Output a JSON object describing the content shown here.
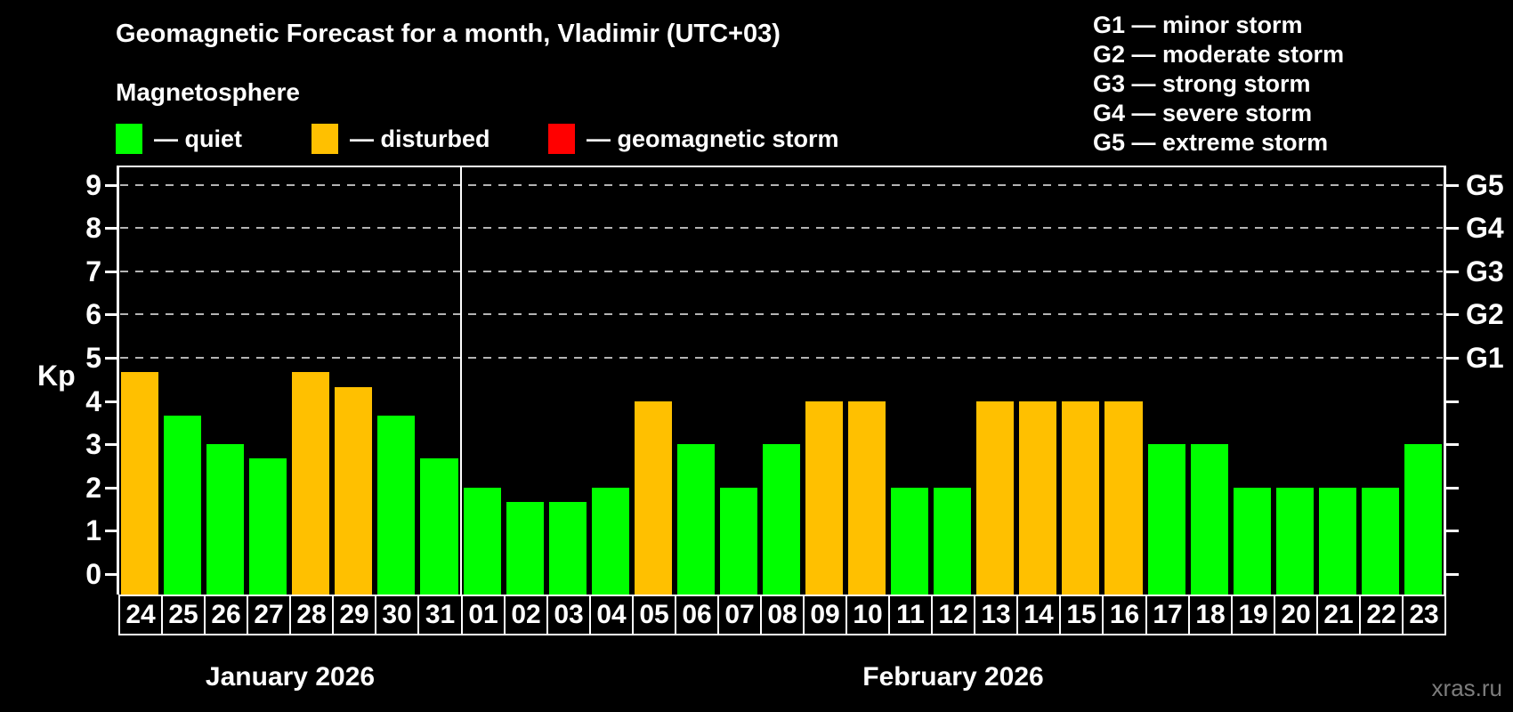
{
  "header": {
    "title": "Geomagnetic Forecast for a month, Vladimir (UTC+03)",
    "subtitle": "Magnetosphere"
  },
  "legend": {
    "items": [
      {
        "key": "quiet",
        "label": "— quiet",
        "color": "#00ff00"
      },
      {
        "key": "disturbed",
        "label": "— disturbed",
        "color": "#ffc000"
      },
      {
        "key": "storm",
        "label": "— geomagnetic storm",
        "color": "#ff0000"
      }
    ]
  },
  "storm_scale_legend": {
    "items": [
      "G1 — minor storm",
      "G2 — moderate storm",
      "G3 — strong storm",
      "G4 — severe storm",
      "G5 — extreme storm"
    ]
  },
  "watermark": "xras.ru",
  "colors": {
    "background": "#000000",
    "quiet": "#00ff00",
    "disturbed": "#ffc000",
    "storm": "#ff0000",
    "axis": "#ffffff",
    "grid": "#b4b4b4"
  },
  "chart_data": {
    "type": "bar",
    "title": "Geomagnetic Forecast for a month, Vladimir (UTC+03)",
    "ylabel": "Kp",
    "ylim": [
      0,
      9
    ],
    "yticks": [
      0,
      1,
      2,
      3,
      4,
      5,
      6,
      7,
      8,
      9
    ],
    "grid": "horizontal dashed lines at Kp 5,6,7,8,9",
    "legend_position": "top",
    "right_axis": [
      {
        "label": "G1",
        "kp": 5
      },
      {
        "label": "G2",
        "kp": 6
      },
      {
        "label": "G3",
        "kp": 7
      },
      {
        "label": "G4",
        "kp": 8
      },
      {
        "label": "G5",
        "kp": 9
      }
    ],
    "months": [
      {
        "label": "January 2026",
        "start_index": 0,
        "days": 8
      },
      {
        "label": "February 2026",
        "start_index": 8,
        "days": 23
      }
    ],
    "bars": [
      {
        "day": "24",
        "month": "January 2026",
        "kp": 4.67,
        "status": "disturbed"
      },
      {
        "day": "25",
        "month": "January 2026",
        "kp": 3.67,
        "status": "quiet"
      },
      {
        "day": "26",
        "month": "January 2026",
        "kp": 3.0,
        "status": "quiet"
      },
      {
        "day": "27",
        "month": "January 2026",
        "kp": 2.67,
        "status": "quiet"
      },
      {
        "day": "28",
        "month": "January 2026",
        "kp": 4.67,
        "status": "disturbed"
      },
      {
        "day": "29",
        "month": "January 2026",
        "kp": 4.33,
        "status": "disturbed"
      },
      {
        "day": "30",
        "month": "January 2026",
        "kp": 3.67,
        "status": "quiet"
      },
      {
        "day": "31",
        "month": "January 2026",
        "kp": 2.67,
        "status": "quiet"
      },
      {
        "day": "01",
        "month": "February 2026",
        "kp": 2.0,
        "status": "quiet"
      },
      {
        "day": "02",
        "month": "February 2026",
        "kp": 1.67,
        "status": "quiet"
      },
      {
        "day": "03",
        "month": "February 2026",
        "kp": 1.67,
        "status": "quiet"
      },
      {
        "day": "04",
        "month": "February 2026",
        "kp": 2.0,
        "status": "quiet"
      },
      {
        "day": "05",
        "month": "February 2026",
        "kp": 4.0,
        "status": "disturbed"
      },
      {
        "day": "06",
        "month": "February 2026",
        "kp": 3.0,
        "status": "quiet"
      },
      {
        "day": "07",
        "month": "February 2026",
        "kp": 2.0,
        "status": "quiet"
      },
      {
        "day": "08",
        "month": "February 2026",
        "kp": 3.0,
        "status": "quiet"
      },
      {
        "day": "09",
        "month": "February 2026",
        "kp": 4.0,
        "status": "disturbed"
      },
      {
        "day": "10",
        "month": "February 2026",
        "kp": 4.0,
        "status": "disturbed"
      },
      {
        "day": "11",
        "month": "February 2026",
        "kp": 2.0,
        "status": "quiet"
      },
      {
        "day": "12",
        "month": "February 2026",
        "kp": 2.0,
        "status": "quiet"
      },
      {
        "day": "13",
        "month": "February 2026",
        "kp": 4.0,
        "status": "disturbed"
      },
      {
        "day": "14",
        "month": "February 2026",
        "kp": 4.0,
        "status": "disturbed"
      },
      {
        "day": "15",
        "month": "February 2026",
        "kp": 4.0,
        "status": "disturbed"
      },
      {
        "day": "16",
        "month": "February 2026",
        "kp": 4.0,
        "status": "disturbed"
      },
      {
        "day": "17",
        "month": "February 2026",
        "kp": 3.0,
        "status": "quiet"
      },
      {
        "day": "18",
        "month": "February 2026",
        "kp": 3.0,
        "status": "quiet"
      },
      {
        "day": "19",
        "month": "February 2026",
        "kp": 2.0,
        "status": "quiet"
      },
      {
        "day": "20",
        "month": "February 2026",
        "kp": 2.0,
        "status": "quiet"
      },
      {
        "day": "21",
        "month": "February 2026",
        "kp": 2.0,
        "status": "quiet"
      },
      {
        "day": "22",
        "month": "February 2026",
        "kp": 2.0,
        "status": "quiet"
      },
      {
        "day": "23",
        "month": "February 2026",
        "kp": 3.0,
        "status": "quiet"
      }
    ]
  }
}
